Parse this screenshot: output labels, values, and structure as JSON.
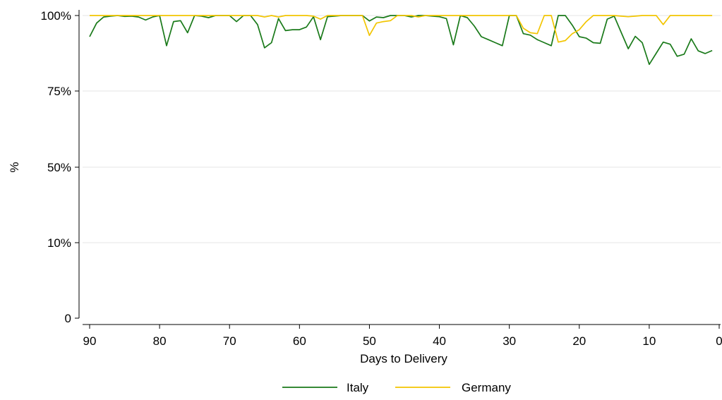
{
  "chart_data": {
    "type": "line",
    "title": "",
    "xlabel": "Days to Delivery",
    "ylabel": "%",
    "x_reversed": true,
    "xlim": [
      90,
      0
    ],
    "x_ticks": [
      90,
      80,
      70,
      60,
      50,
      40,
      30,
      20,
      10,
      0
    ],
    "x_tick_labels": [
      "90",
      "80",
      "70",
      "60",
      "50",
      "40",
      "30",
      "20",
      "10",
      "0"
    ],
    "y_ticks": [
      0,
      10,
      50,
      75,
      100
    ],
    "y_tick_labels": [
      "0",
      "10%",
      "50%",
      "75%",
      "100%"
    ],
    "grid": "horizontal",
    "legend_position": "bottom",
    "x": [
      90,
      89,
      88,
      87,
      86,
      85,
      84,
      83,
      82,
      81,
      80,
      79,
      78,
      77,
      76,
      75,
      74,
      73,
      72,
      71,
      70,
      69,
      68,
      67,
      66,
      65,
      64,
      63,
      62,
      61,
      60,
      59,
      58,
      57,
      56,
      55,
      54,
      53,
      52,
      51,
      50,
      49,
      48,
      47,
      46,
      45,
      44,
      43,
      42,
      41,
      40,
      39,
      38,
      37,
      36,
      35,
      34,
      33,
      32,
      31,
      30,
      29,
      28,
      27,
      26,
      25,
      24,
      23,
      22,
      21,
      20,
      19,
      18,
      17,
      16,
      15,
      14,
      13,
      12,
      11,
      10,
      9,
      8,
      7,
      6,
      5,
      4,
      3,
      2,
      1
    ],
    "series": [
      {
        "name": "Italy",
        "color": "#1a7a1a",
        "values": [
          93,
          97.5,
          99.5,
          99.8,
          100,
          99.7,
          99.8,
          99.5,
          98.5,
          99.5,
          100,
          90,
          98,
          98.3,
          94.3,
          100,
          99.8,
          99.3,
          100,
          100,
          100,
          98,
          100,
          100,
          97,
          89.3,
          91,
          99,
          95,
          95.3,
          95.3,
          96.2,
          99.6,
          92,
          99.6,
          99.8,
          100,
          100,
          100,
          100,
          98.2,
          99.5,
          99.3,
          100,
          100,
          100,
          99.5,
          100,
          100,
          99.8,
          99.6,
          99,
          90.3,
          100,
          99.3,
          96.5,
          93,
          92,
          91,
          90,
          100,
          100,
          94,
          93.5,
          92,
          91,
          90,
          100,
          100,
          96.8,
          93,
          92.5,
          91,
          90.8,
          98.8,
          99.8,
          94.4,
          89,
          93.1,
          91,
          83.8,
          87.5,
          91.2,
          90.5,
          86.5,
          87.2,
          92.3,
          88.3,
          87.4,
          88.4
        ]
      },
      {
        "name": "Germany",
        "color": "#f2c500",
        "values": [
          100,
          100,
          100,
          100,
          100,
          100,
          100,
          100,
          100,
          100,
          100,
          100,
          100,
          100,
          100,
          100,
          100,
          100,
          100,
          100,
          100,
          100,
          100,
          100,
          100,
          99.5,
          100,
          99.5,
          100,
          100,
          100,
          100,
          99.8,
          98.8,
          100,
          100,
          100,
          100,
          100,
          100,
          93.4,
          97.5,
          98,
          98.3,
          100,
          100,
          100,
          99.5,
          100,
          100,
          100,
          100,
          100,
          100,
          100,
          100,
          100,
          100,
          100,
          100,
          100,
          100,
          95.8,
          94.3,
          94,
          100,
          100,
          91.2,
          91.7,
          94,
          95.3,
          98,
          100,
          100,
          100,
          100,
          99.8,
          99.6,
          99.8,
          100,
          100,
          100,
          97,
          100,
          100,
          100,
          100,
          100,
          100,
          100
        ]
      }
    ]
  }
}
